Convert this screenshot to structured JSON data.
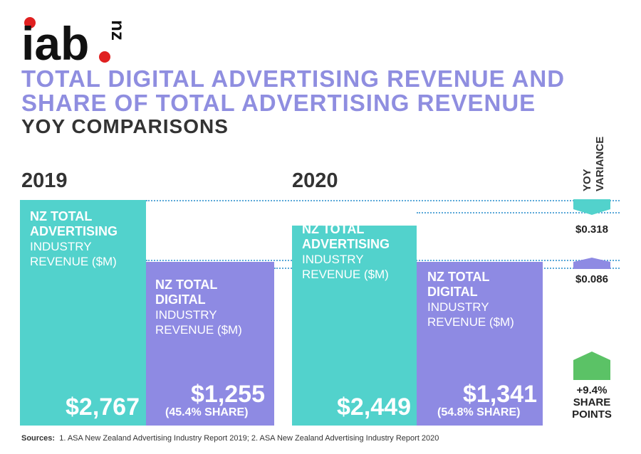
{
  "logo": {
    "text": "iab",
    "suffix": "nz",
    "accent": "#e02020"
  },
  "title": {
    "line1": "TOTAL DIGITAL ADVERTISING REVENUE AND",
    "line2": "SHARE OF TOTAL ADVERTISING REVENUE",
    "subtitle": "YOY COMPARISONS"
  },
  "yoy_header": {
    "line1": "YOY",
    "line2": "VARIANCE"
  },
  "colors": {
    "total": "#52d2cc",
    "digital": "#8e8ae3",
    "share": "#5bc266",
    "title": "#8f8ee0"
  },
  "chart_data": {
    "type": "bar",
    "categories": [
      "2019",
      "2020"
    ],
    "series": [
      {
        "name": "NZ TOTAL ADVERTISING INDUSTRY REVENUE ($M)",
        "label_bold": [
          "NZ TOTAL",
          "ADVERTISING"
        ],
        "label_regular": [
          "INDUSTRY",
          "REVENUE ($M)"
        ],
        "values": [
          2767,
          2449
        ],
        "value_labels": [
          "$2,767",
          "$2,449"
        ]
      },
      {
        "name": "NZ TOTAL DIGITAL INDUSTRY REVENUE ($M)",
        "label_bold": [
          "NZ TOTAL",
          "DIGITAL"
        ],
        "label_regular": [
          "INDUSTRY",
          "REVENUE ($M)"
        ],
        "values": [
          1255,
          1341
        ],
        "value_labels": [
          "$1,255",
          "$1,341"
        ],
        "share_labels": [
          "(45.4% SHARE)",
          "(54.8% SHARE)"
        ]
      }
    ],
    "yoy_variance": [
      {
        "label": "$0.318",
        "direction": "down"
      },
      {
        "label": "$0.086",
        "direction": "up"
      },
      {
        "label_lines": [
          "+9.4%",
          "SHARE",
          "POINTS"
        ],
        "direction": "up"
      }
    ],
    "title": "TOTAL DIGITAL ADVERTISING REVENUE AND SHARE OF TOTAL ADVERTISING REVENUE"
  },
  "sources": {
    "label": "Sources:",
    "text": "1. ASA New Zealand Advertising Industry Report 2019;  2. ASA New Zealand Advertising Industry Report 2020"
  }
}
